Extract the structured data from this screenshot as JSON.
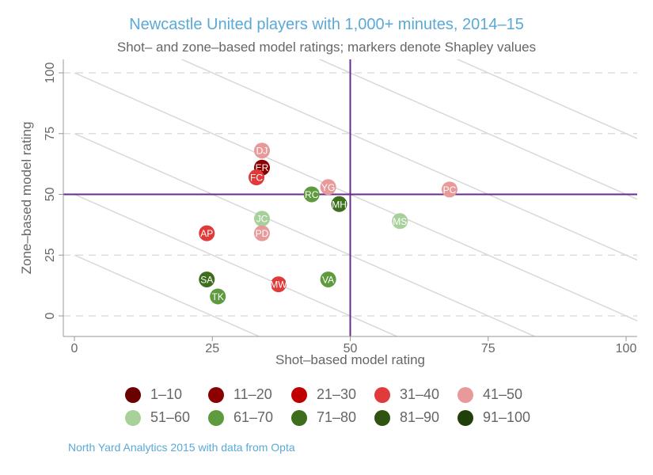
{
  "chart_data": {
    "type": "scatter",
    "title": "Newcastle United players with 1,000+ minutes, 2014–15",
    "subtitle": "Shot– and zone–based model ratings; markers denote Shapley values",
    "xlabel": "Shot–based model rating",
    "ylabel": "Zone–based model rating",
    "xlim": [
      0,
      100
    ],
    "ylim": [
      0,
      100
    ],
    "xticks": [
      "0",
      "25",
      "50",
      "75",
      "100"
    ],
    "yticks": [
      "0",
      "25",
      "50",
      "75",
      "100"
    ],
    "reference_lines": {
      "x": 50,
      "y": 50
    },
    "iso_sum_lines": [
      25,
      50,
      75,
      100,
      125,
      150,
      175
    ],
    "legend": [
      {
        "label": "1–10",
        "color": "#6b0000"
      },
      {
        "label": "11–20",
        "color": "#8b0000"
      },
      {
        "label": "21–30",
        "color": "#c00000"
      },
      {
        "label": "31–40",
        "color": "#e03a3a"
      },
      {
        "label": "41–50",
        "color": "#e89a9a"
      },
      {
        "label": "51–60",
        "color": "#a8d09a"
      },
      {
        "label": "61–70",
        "color": "#5e9a3e"
      },
      {
        "label": "71–80",
        "color": "#3c6e1e"
      },
      {
        "label": "81–90",
        "color": "#2e5410"
      },
      {
        "label": "91–100",
        "color": "#213f0a"
      }
    ],
    "points": [
      {
        "label": "DJ",
        "x": 34,
        "y": 68,
        "group": 4
      },
      {
        "label": "ER",
        "x": 34,
        "y": 61,
        "group": 1
      },
      {
        "label": "FC",
        "x": 33,
        "y": 57,
        "group": 3
      },
      {
        "label": "YG",
        "x": 46,
        "y": 53,
        "group": 4
      },
      {
        "label": "RC",
        "x": 43,
        "y": 50,
        "group": 6
      },
      {
        "label": "MH",
        "x": 48,
        "y": 46,
        "group": 7
      },
      {
        "label": "PC",
        "x": 68,
        "y": 52,
        "group": 4
      },
      {
        "label": "MS",
        "x": 59,
        "y": 39,
        "group": 5
      },
      {
        "label": "JC",
        "x": 34,
        "y": 40,
        "group": 5
      },
      {
        "label": "PD",
        "x": 34,
        "y": 34,
        "group": 4
      },
      {
        "label": "AP",
        "x": 24,
        "y": 34,
        "group": 3
      },
      {
        "label": "SA",
        "x": 24,
        "y": 15,
        "group": 7
      },
      {
        "label": "TK",
        "x": 26,
        "y": 8,
        "group": 6
      },
      {
        "label": "MW",
        "x": 37,
        "y": 13,
        "group": 3
      },
      {
        "label": "VA",
        "x": 46,
        "y": 15,
        "group": 6
      }
    ]
  },
  "source": "North Yard Analytics 2015 with data from Opta"
}
